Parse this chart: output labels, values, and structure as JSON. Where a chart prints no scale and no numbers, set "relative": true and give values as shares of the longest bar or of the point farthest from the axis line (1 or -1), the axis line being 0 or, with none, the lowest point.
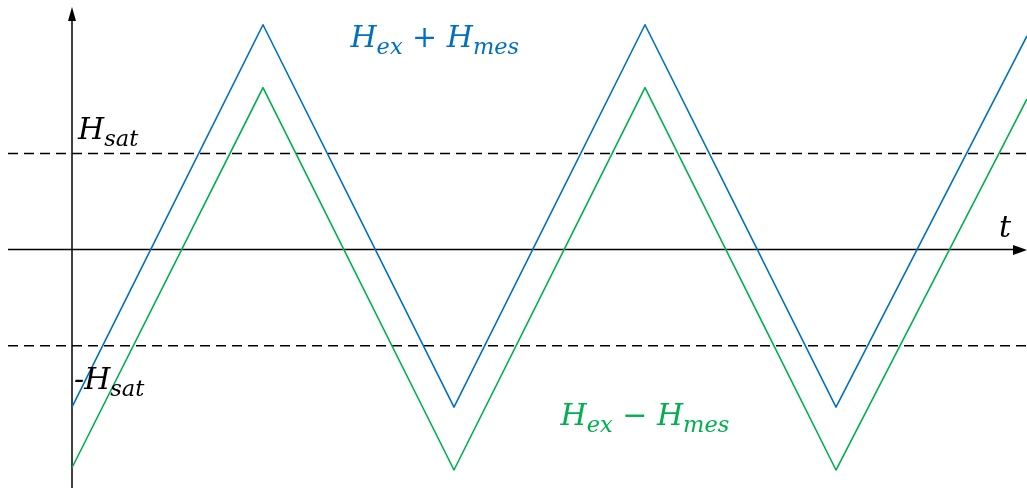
{
  "chart_data": {
    "type": "line",
    "relative": true,
    "xlabel": "t",
    "legend": false,
    "categories": [
      null,
      null,
      null,
      null,
      null,
      null
    ],
    "series": [
      {
        "name": "H$_{ex}$ + H$_{mes}$",
        "color": "#0070c0",
        "values": [
          -0.7,
          1,
          -0.7,
          1,
          -0.7,
          0.95
        ]
      },
      {
        "name": "H$_{ex}$ − H$_{mes}$",
        "color": "#00b050",
        "values": [
          -0.97,
          0.72,
          -0.98,
          0.72,
          -0.98,
          0.67
        ]
      }
    ],
    "ref_lines": [
      {
        "axis": "y",
        "value": 0.427,
        "label": "H$_{sat}$",
        "color": "#000000",
        "line_style": "dashed"
      },
      {
        "axis": "y",
        "value": -0.427,
        "label": "-H$_{sat}$",
        "color": "#000000",
        "line_style": "dashed"
      }
    ]
  }
}
